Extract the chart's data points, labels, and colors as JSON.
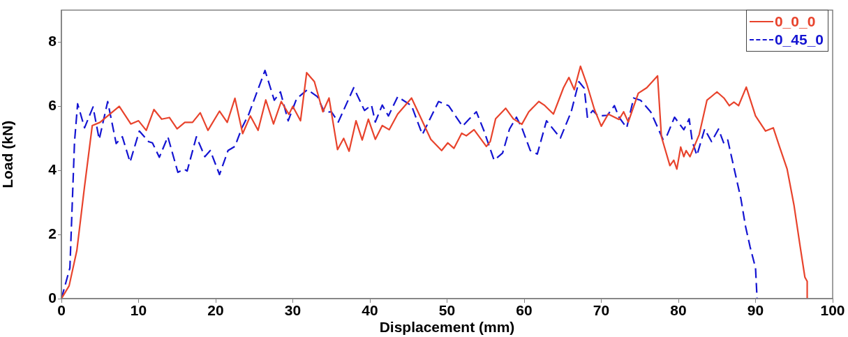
{
  "chart_data": {
    "type": "line",
    "xlabel": "Displacement (mm)",
    "ylabel": "Load (kN)",
    "xlim": [
      0,
      100
    ],
    "ylim": [
      0,
      9
    ],
    "xticks": [
      0,
      10,
      20,
      30,
      40,
      50,
      60,
      70,
      80,
      90,
      100
    ],
    "yticks": [
      0,
      2,
      4,
      6,
      8
    ],
    "grid": false,
    "legend": "top right",
    "marker": "none",
    "series": [
      {
        "name": "0_0_0",
        "color": "#e8432c",
        "line_style": "solid",
        "x": [
          0,
          1,
          2,
          3,
          4,
          5,
          6,
          7.5,
          9,
          10,
          11,
          12,
          13,
          14,
          15,
          16,
          17,
          18,
          19,
          20.5,
          21.5,
          22.5,
          23.5,
          24.5,
          25.5,
          26.5,
          27.5,
          28.5,
          29.5,
          30,
          31,
          31.8,
          32.8,
          33.9,
          34.7,
          35.8,
          36.6,
          37.3,
          38.2,
          39,
          39.8,
          40.7,
          41.6,
          42.5,
          43.6,
          45.4,
          47.9,
          49.3,
          50.1,
          50.9,
          51.9,
          52.5,
          53.5,
          55.1,
          55.6,
          56.3,
          57.6,
          58.6,
          59.7,
          60.6,
          61.9,
          62.6,
          63.8,
          65.1,
          65.8,
          66.5,
          67.3,
          68.1,
          69.1,
          70,
          70.9,
          72.3,
          72.9,
          73.5,
          74.8,
          75.9,
          77.3,
          77.8,
          78.9,
          79.4,
          79.8,
          80.3,
          80.7,
          81,
          81.5,
          82.7,
          83.7,
          85,
          85.9,
          86.6,
          87.2,
          87.8,
          88.8,
          90,
          91.3,
          92.3,
          93.1,
          94.1,
          95,
          95.8,
          96.4,
          96.7,
          96.7
        ],
        "values": [
          0,
          0.4,
          1.5,
          3.5,
          5.4,
          5.5,
          5.7,
          6,
          5.45,
          5.55,
          5.25,
          5.9,
          5.6,
          5.65,
          5.3,
          5.5,
          5.5,
          5.8,
          5.25,
          5.85,
          5.5,
          6.25,
          5.15,
          5.7,
          5.25,
          6.2,
          5.45,
          6.15,
          5.75,
          6,
          5.55,
          7.05,
          6.77,
          5.83,
          6.26,
          4.65,
          5,
          4.6,
          5.55,
          4.95,
          5.6,
          4.97,
          5.4,
          5.27,
          5.76,
          6.26,
          4.97,
          4.62,
          4.86,
          4.69,
          5.16,
          5.08,
          5.27,
          4.75,
          4.9,
          5.61,
          5.94,
          5.61,
          5.44,
          5.83,
          6.15,
          6.04,
          5.76,
          6.58,
          6.9,
          6.52,
          7.25,
          6.71,
          5.91,
          5.38,
          5.76,
          5.59,
          5.83,
          5.51,
          6.41,
          6.58,
          6.95,
          5.05,
          4.15,
          4.32,
          4.04,
          4.73,
          4.43,
          4.62,
          4.43,
          5.12,
          6.19,
          6.45,
          6.26,
          6.02,
          6.13,
          6.02,
          6.6,
          5.7,
          5.23,
          5.33,
          4.75,
          4.04,
          2.9,
          1.61,
          0.67,
          0.54,
          0
        ]
      },
      {
        "name": "0_45_0",
        "color": "#1414d2",
        "line_style": "dashed",
        "x": [
          0,
          1.1,
          1.7,
          2.1,
          3,
          4.1,
          4.9,
          6,
          7.1,
          7.9,
          8.9,
          10.1,
          11.3,
          11.8,
          12.7,
          13.8,
          15.1,
          15.9,
          16.3,
          17.5,
          18.6,
          19.3,
          20.5,
          21.6,
          22.5,
          23.4,
          24.3,
          26.4,
          27.6,
          28.4,
          29.4,
          30.5,
          31.9,
          33.2,
          34.1,
          35,
          35.9,
          37.9,
          39.3,
          40.2,
          40.7,
          41.6,
          42.4,
          43.6,
          45.4,
          46.8,
          48.9,
          50.2,
          52,
          52.9,
          53.8,
          54.8,
          56.1,
          57.2,
          58.1,
          59,
          59.7,
          60.8,
          61.7,
          62.9,
          64.7,
          66.1,
          67.1,
          67.8,
          68.2,
          68.9,
          69.6,
          70.8,
          71.7,
          72.3,
          73.3,
          74.2,
          75.1,
          76.4,
          78,
          78.5,
          79.5,
          80.7,
          81.4,
          81.8,
          82.4,
          83.4,
          84.3,
          85.2,
          85.9,
          86.4,
          87.3,
          88.1,
          88.7,
          89.3,
          90,
          90.2
        ],
        "values": [
          0,
          0.96,
          4.9,
          6.08,
          5.33,
          5.98,
          4.97,
          6.15,
          4.84,
          5.05,
          4.26,
          5.23,
          4.9,
          4.86,
          4.41,
          5.05,
          3.94,
          4.04,
          3.98,
          5.05,
          4.43,
          4.62,
          3.87,
          4.62,
          4.75,
          5.33,
          5.76,
          7.12,
          6.19,
          6.45,
          5.55,
          6.24,
          6.52,
          6.3,
          5.81,
          5.83,
          5.51,
          6.58,
          5.87,
          6.04,
          5.51,
          6.04,
          5.7,
          6.3,
          6.02,
          5.12,
          6.15,
          6.02,
          5.38,
          5.61,
          5.83,
          5.23,
          4.32,
          4.54,
          5.29,
          5.66,
          5.33,
          4.62,
          4.51,
          5.55,
          5.01,
          5.83,
          6.77,
          6.56,
          5.66,
          5.87,
          5.7,
          5.72,
          6.02,
          5.66,
          5.33,
          6.26,
          6.19,
          5.83,
          4.97,
          5.08,
          5.66,
          5.27,
          5.61,
          4.9,
          4.47,
          5.29,
          4.9,
          5.29,
          4.84,
          4.95,
          3.98,
          3.12,
          2.26,
          1.61,
          0.96,
          0
        ]
      }
    ]
  }
}
